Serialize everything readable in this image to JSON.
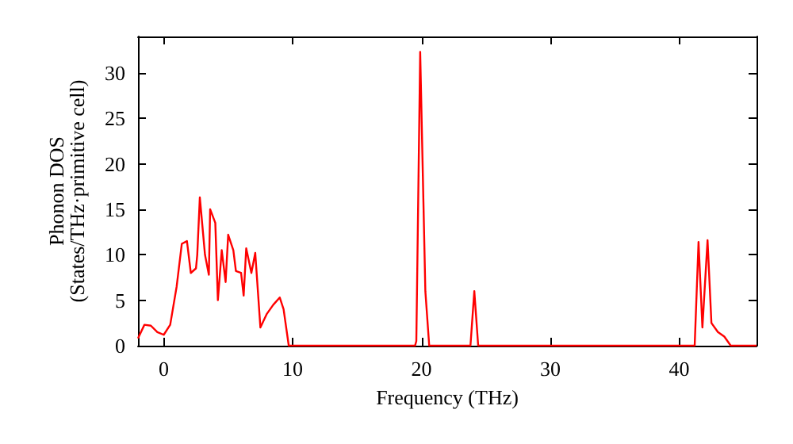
{
  "chart_data": {
    "type": "line",
    "xlabel": "Frequency (THz)",
    "ylabel": "Phonon DOS\n(States/THz·primitive cell)",
    "xlim": [
      -2,
      46
    ],
    "ylim": [
      0,
      34
    ],
    "xticks": [
      0,
      10,
      20,
      30,
      40
    ],
    "yticks": [
      0,
      5,
      10,
      15,
      20,
      25,
      30
    ],
    "grid": false,
    "marker": "none",
    "line_style": "solid",
    "series": [
      {
        "color": "#ff0000",
        "x": [
          -2,
          -1.5,
          -1,
          -0.5,
          0,
          0.5,
          1,
          1.4,
          1.8,
          2.1,
          2.5,
          2.6,
          2.8,
          3.2,
          3.5,
          3.6,
          4.0,
          4.2,
          4.5,
          4.8,
          5.0,
          5.4,
          5.6,
          6.0,
          6.2,
          6.4,
          6.8,
          7.1,
          7.5,
          8,
          8.5,
          9,
          9.3,
          9.7,
          19.5,
          19.6,
          19.9,
          20.3,
          20.6,
          23.8,
          24.1,
          24.4,
          41.2,
          41.5,
          41.8,
          42.2,
          42.5,
          43,
          43.5,
          44,
          46
        ],
        "values": [
          0.8,
          2.3,
          2.2,
          1.5,
          1.2,
          2.3,
          6.5,
          11.2,
          11.5,
          8,
          8.5,
          10,
          16.3,
          10,
          7.8,
          15,
          13.5,
          5,
          10.5,
          7,
          12.2,
          10.5,
          8.2,
          8,
          5.5,
          10.7,
          8,
          10.2,
          2,
          3.5,
          4.5,
          5.3,
          4,
          0,
          0,
          0.5,
          32.3,
          6,
          0,
          0,
          6,
          0,
          0,
          11.4,
          2,
          11.6,
          2.5,
          1.5,
          1,
          0,
          0
        ]
      }
    ]
  }
}
